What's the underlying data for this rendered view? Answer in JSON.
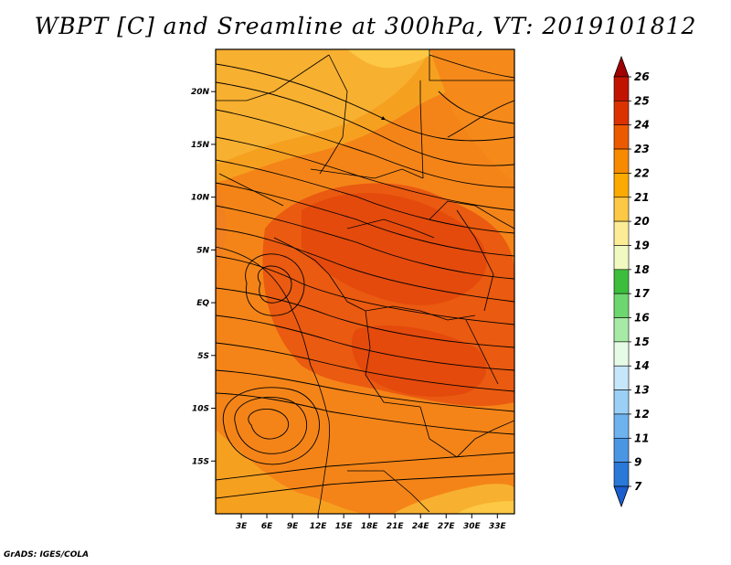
{
  "title": "WBPT [C] and Sreamline at 300hPa, VT: 2019101812",
  "credit": "GrADS: IGES/COLA",
  "map": {
    "lat_labels": [
      "20N",
      "15N",
      "10N",
      "5N",
      "EQ",
      "5S",
      "10S",
      "15S"
    ],
    "lon_labels": [
      "3E",
      "6E",
      "9E",
      "12E",
      "15E",
      "18E",
      "21E",
      "24E",
      "27E",
      "30E",
      "33E"
    ],
    "lat_range": [
      -20,
      24
    ],
    "lon_range": [
      0,
      35
    ]
  },
  "colorbar": {
    "labels": [
      "26",
      "25",
      "24",
      "23",
      "22",
      "21",
      "20",
      "19",
      "18",
      "17",
      "16",
      "15",
      "14",
      "13",
      "12",
      "11",
      "9",
      "7"
    ],
    "colors": [
      "#a00000",
      "#c01400",
      "#dc3200",
      "#ec5a00",
      "#f88a00",
      "#fcaa00",
      "#fcc845",
      "#fcec96",
      "#f0fac0",
      "#3cbe3c",
      "#6ed66e",
      "#a6eaa6",
      "#e6fbe6",
      "#c6e6fa",
      "#9ad0f5",
      "#6eb2ee",
      "#4a96e4",
      "#2a78d8",
      "#1a5ed0"
    ]
  }
}
